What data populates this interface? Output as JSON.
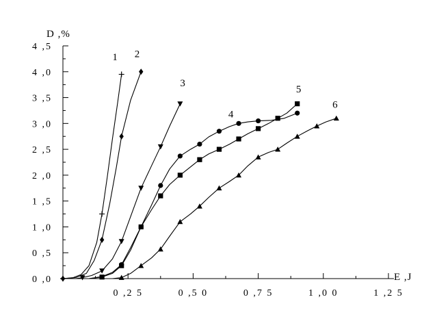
{
  "chart_data": {
    "type": "line",
    "xlabel": "E ,J",
    "ylabel": "D ,%",
    "xlim": [
      0,
      1.25
    ],
    "ylim": [
      0,
      4.5
    ],
    "grid": false,
    "x_ticks": [
      0.25,
      0.5,
      0.75,
      1.0,
      1.25
    ],
    "x_tick_labels": [
      "0 ,2 5",
      "0 ,5 0",
      "0 ,7 5",
      "1 ,0 0",
      "1 ,2 5"
    ],
    "y_ticks": [
      0,
      0.5,
      1.0,
      1.5,
      2.0,
      2.5,
      3.0,
      3.5,
      4.0,
      4.5
    ],
    "y_tick_labels": [
      "0 ,0",
      "0 ,5",
      "1 ,0",
      "1 ,5",
      "2 ,0",
      "2 ,5",
      "3 ,0",
      "3 ,5",
      "4 ,0",
      "4 ,5"
    ],
    "series": [
      {
        "name": "1",
        "marker": "plus",
        "points": [
          [
            0.0,
            0.0
          ],
          [
            0.15,
            1.25
          ],
          [
            0.225,
            3.95
          ]
        ],
        "curve": [
          [
            0.0,
            0.0
          ],
          [
            0.04,
            0.02
          ],
          [
            0.07,
            0.08
          ],
          [
            0.1,
            0.25
          ],
          [
            0.13,
            0.7
          ],
          [
            0.15,
            1.25
          ],
          [
            0.17,
            1.95
          ],
          [
            0.19,
            2.7
          ],
          [
            0.21,
            3.4
          ],
          [
            0.225,
            3.95
          ]
        ]
      },
      {
        "name": "2",
        "marker": "diamond",
        "points": [
          [
            0.0,
            0.0
          ],
          [
            0.15,
            0.75
          ],
          [
            0.225,
            2.75
          ],
          [
            0.3,
            4.0
          ]
        ],
        "curve": [
          [
            0.0,
            0.0
          ],
          [
            0.05,
            0.02
          ],
          [
            0.09,
            0.1
          ],
          [
            0.12,
            0.35
          ],
          [
            0.15,
            0.75
          ],
          [
            0.18,
            1.45
          ],
          [
            0.205,
            2.15
          ],
          [
            0.225,
            2.75
          ],
          [
            0.26,
            3.45
          ],
          [
            0.3,
            4.0
          ]
        ]
      },
      {
        "name": "3",
        "marker": "triangle-down",
        "points": [
          [
            0.075,
            0.02
          ],
          [
            0.15,
            0.15
          ],
          [
            0.225,
            0.72
          ],
          [
            0.3,
            1.75
          ],
          [
            0.375,
            2.55
          ],
          [
            0.45,
            3.38
          ]
        ],
        "curve": [
          [
            0.05,
            0.0
          ],
          [
            0.075,
            0.02
          ],
          [
            0.11,
            0.06
          ],
          [
            0.15,
            0.15
          ],
          [
            0.19,
            0.38
          ],
          [
            0.225,
            0.72
          ],
          [
            0.26,
            1.2
          ],
          [
            0.3,
            1.75
          ],
          [
            0.34,
            2.18
          ],
          [
            0.375,
            2.55
          ],
          [
            0.41,
            2.95
          ],
          [
            0.45,
            3.38
          ]
        ]
      },
      {
        "name": "4",
        "marker": "circle",
        "points": [
          [
            0.225,
            0.27
          ],
          [
            0.3,
            1.0
          ],
          [
            0.375,
            1.8
          ],
          [
            0.45,
            2.37
          ],
          [
            0.525,
            2.6
          ],
          [
            0.6,
            2.85
          ],
          [
            0.675,
            3.0
          ],
          [
            0.75,
            3.05
          ],
          [
            0.9,
            3.2
          ]
        ],
        "curve": [
          [
            0.1,
            0.0
          ],
          [
            0.15,
            0.04
          ],
          [
            0.19,
            0.12
          ],
          [
            0.225,
            0.27
          ],
          [
            0.26,
            0.6
          ],
          [
            0.3,
            1.0
          ],
          [
            0.34,
            1.42
          ],
          [
            0.375,
            1.8
          ],
          [
            0.41,
            2.12
          ],
          [
            0.45,
            2.37
          ],
          [
            0.49,
            2.5
          ],
          [
            0.525,
            2.6
          ],
          [
            0.56,
            2.74
          ],
          [
            0.6,
            2.85
          ],
          [
            0.64,
            2.94
          ],
          [
            0.675,
            3.0
          ],
          [
            0.71,
            3.03
          ],
          [
            0.75,
            3.05
          ],
          [
            0.8,
            3.06
          ],
          [
            0.85,
            3.1
          ],
          [
            0.9,
            3.2
          ]
        ]
      },
      {
        "name": "5",
        "marker": "square",
        "points": [
          [
            0.15,
            0.03
          ],
          [
            0.225,
            0.25
          ],
          [
            0.3,
            1.0
          ],
          [
            0.375,
            1.6
          ],
          [
            0.45,
            2.0
          ],
          [
            0.525,
            2.3
          ],
          [
            0.6,
            2.5
          ],
          [
            0.675,
            2.7
          ],
          [
            0.75,
            2.9
          ],
          [
            0.825,
            3.1
          ],
          [
            0.9,
            3.38
          ]
        ],
        "curve": [
          [
            0.1,
            0.0
          ],
          [
            0.15,
            0.03
          ],
          [
            0.19,
            0.1
          ],
          [
            0.225,
            0.25
          ],
          [
            0.26,
            0.55
          ],
          [
            0.3,
            1.0
          ],
          [
            0.34,
            1.33
          ],
          [
            0.375,
            1.6
          ],
          [
            0.41,
            1.82
          ],
          [
            0.45,
            2.0
          ],
          [
            0.49,
            2.16
          ],
          [
            0.525,
            2.3
          ],
          [
            0.56,
            2.41
          ],
          [
            0.6,
            2.5
          ],
          [
            0.64,
            2.6
          ],
          [
            0.675,
            2.7
          ],
          [
            0.71,
            2.8
          ],
          [
            0.75,
            2.9
          ],
          [
            0.79,
            3.0
          ],
          [
            0.825,
            3.1
          ],
          [
            0.86,
            3.2
          ],
          [
            0.9,
            3.38
          ]
        ]
      },
      {
        "name": "6",
        "marker": "triangle-up",
        "points": [
          [
            0.225,
            0.02
          ],
          [
            0.3,
            0.25
          ],
          [
            0.375,
            0.57
          ],
          [
            0.45,
            1.1
          ],
          [
            0.525,
            1.4
          ],
          [
            0.6,
            1.75
          ],
          [
            0.675,
            2.0
          ],
          [
            0.75,
            2.35
          ],
          [
            0.825,
            2.5
          ],
          [
            0.9,
            2.75
          ],
          [
            0.975,
            2.95
          ],
          [
            1.05,
            3.1
          ]
        ],
        "curve": [
          [
            0.15,
            0.0
          ],
          [
            0.19,
            0.0
          ],
          [
            0.225,
            0.02
          ],
          [
            0.26,
            0.1
          ],
          [
            0.3,
            0.25
          ],
          [
            0.34,
            0.4
          ],
          [
            0.375,
            0.57
          ],
          [
            0.41,
            0.82
          ],
          [
            0.45,
            1.1
          ],
          [
            0.49,
            1.25
          ],
          [
            0.525,
            1.4
          ],
          [
            0.56,
            1.57
          ],
          [
            0.6,
            1.75
          ],
          [
            0.64,
            1.88
          ],
          [
            0.675,
            2.0
          ],
          [
            0.71,
            2.18
          ],
          [
            0.75,
            2.35
          ],
          [
            0.79,
            2.44
          ],
          [
            0.825,
            2.5
          ],
          [
            0.86,
            2.62
          ],
          [
            0.9,
            2.75
          ],
          [
            0.94,
            2.86
          ],
          [
            0.975,
            2.95
          ],
          [
            1.01,
            3.03
          ],
          [
            1.05,
            3.1
          ]
        ]
      }
    ],
    "curve_labels": [
      {
        "text": "1",
        "x": 0.2,
        "y": 4.22
      },
      {
        "text": "2",
        "x": 0.285,
        "y": 4.28
      },
      {
        "text": "3",
        "x": 0.46,
        "y": 3.72
      },
      {
        "text": "4",
        "x": 0.645,
        "y": 3.12
      },
      {
        "text": "5",
        "x": 0.905,
        "y": 3.6
      },
      {
        "text": "6",
        "x": 1.045,
        "y": 3.3
      }
    ]
  }
}
